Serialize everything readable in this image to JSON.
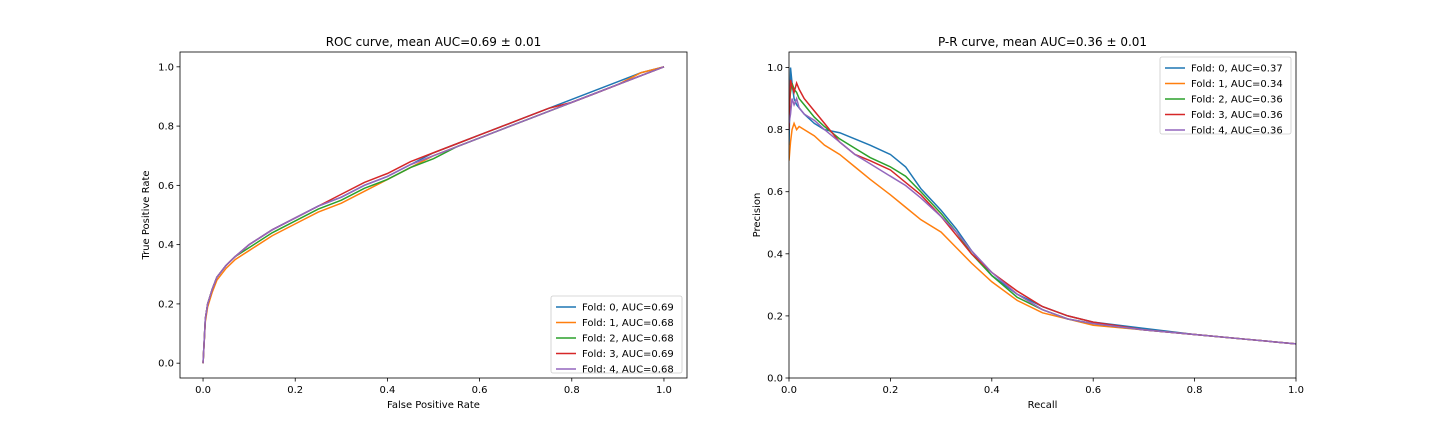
{
  "colors": [
    "#1f77b4",
    "#ff7f0e",
    "#2ca02c",
    "#d62728",
    "#9467bd"
  ],
  "chart_data": [
    {
      "type": "line",
      "title": "ROC curve, mean AUC=0.69 ± 0.01",
      "xlabel": "False Positive Rate",
      "ylabel": "True Positive Rate",
      "xlim": [
        -0.05,
        1.05
      ],
      "ylim": [
        -0.05,
        1.05
      ],
      "xticks": [
        "0.0",
        "0.2",
        "0.4",
        "0.6",
        "0.8",
        "1.0"
      ],
      "yticks": [
        "0.0",
        "0.2",
        "0.4",
        "0.6",
        "0.8",
        "1.0"
      ],
      "legend": "lower-right",
      "grid": false,
      "series": [
        {
          "name": "Fold: 0, AUC=0.69",
          "x": [
            0,
            0.005,
            0.01,
            0.02,
            0.03,
            0.05,
            0.07,
            0.1,
            0.15,
            0.2,
            0.25,
            0.3,
            0.35,
            0.4,
            0.45,
            0.5,
            0.55,
            0.6,
            0.65,
            0.7,
            0.75,
            0.8,
            0.85,
            0.9,
            0.95,
            1.0
          ],
          "y": [
            0,
            0.15,
            0.2,
            0.25,
            0.29,
            0.33,
            0.36,
            0.4,
            0.45,
            0.49,
            0.53,
            0.56,
            0.6,
            0.63,
            0.67,
            0.71,
            0.74,
            0.77,
            0.8,
            0.83,
            0.86,
            0.89,
            0.92,
            0.95,
            0.98,
            1.0
          ]
        },
        {
          "name": "Fold: 1, AUC=0.68",
          "x": [
            0,
            0.005,
            0.01,
            0.02,
            0.03,
            0.05,
            0.07,
            0.1,
            0.15,
            0.2,
            0.25,
            0.3,
            0.35,
            0.4,
            0.45,
            0.5,
            0.55,
            0.6,
            0.65,
            0.7,
            0.75,
            0.8,
            0.85,
            0.9,
            0.95,
            1.0
          ],
          "y": [
            0,
            0.14,
            0.19,
            0.24,
            0.28,
            0.32,
            0.35,
            0.38,
            0.43,
            0.47,
            0.51,
            0.54,
            0.58,
            0.62,
            0.66,
            0.7,
            0.73,
            0.76,
            0.79,
            0.82,
            0.85,
            0.88,
            0.91,
            0.94,
            0.98,
            1.0
          ]
        },
        {
          "name": "Fold: 2, AUC=0.68",
          "x": [
            0,
            0.005,
            0.01,
            0.02,
            0.03,
            0.05,
            0.07,
            0.1,
            0.15,
            0.2,
            0.25,
            0.3,
            0.35,
            0.4,
            0.45,
            0.5,
            0.55,
            0.6,
            0.65,
            0.7,
            0.75,
            0.8,
            0.85,
            0.9,
            0.95,
            1.0
          ],
          "y": [
            0,
            0.15,
            0.2,
            0.25,
            0.29,
            0.33,
            0.36,
            0.39,
            0.44,
            0.48,
            0.52,
            0.55,
            0.59,
            0.62,
            0.66,
            0.69,
            0.73,
            0.76,
            0.79,
            0.82,
            0.85,
            0.88,
            0.91,
            0.94,
            0.97,
            1.0
          ]
        },
        {
          "name": "Fold: 3, AUC=0.69",
          "x": [
            0,
            0.005,
            0.01,
            0.02,
            0.03,
            0.05,
            0.07,
            0.1,
            0.15,
            0.2,
            0.25,
            0.3,
            0.35,
            0.4,
            0.45,
            0.5,
            0.55,
            0.6,
            0.65,
            0.7,
            0.75,
            0.8,
            0.85,
            0.9,
            0.95,
            1.0
          ],
          "y": [
            0,
            0.15,
            0.2,
            0.25,
            0.29,
            0.33,
            0.36,
            0.4,
            0.45,
            0.49,
            0.53,
            0.57,
            0.61,
            0.64,
            0.68,
            0.71,
            0.74,
            0.77,
            0.8,
            0.83,
            0.86,
            0.88,
            0.91,
            0.94,
            0.97,
            1.0
          ]
        },
        {
          "name": "Fold: 4, AUC=0.68",
          "x": [
            0,
            0.005,
            0.01,
            0.02,
            0.03,
            0.05,
            0.07,
            0.1,
            0.15,
            0.2,
            0.25,
            0.3,
            0.35,
            0.4,
            0.45,
            0.5,
            0.55,
            0.6,
            0.65,
            0.7,
            0.75,
            0.8,
            0.85,
            0.9,
            0.95,
            1.0
          ],
          "y": [
            0,
            0.15,
            0.2,
            0.25,
            0.29,
            0.33,
            0.36,
            0.4,
            0.45,
            0.49,
            0.53,
            0.56,
            0.6,
            0.63,
            0.67,
            0.7,
            0.73,
            0.76,
            0.79,
            0.82,
            0.85,
            0.88,
            0.91,
            0.94,
            0.97,
            1.0
          ]
        }
      ]
    },
    {
      "type": "line",
      "title": "P-R curve, mean AUC=0.36 ± 0.01",
      "xlabel": "Recall",
      "ylabel": "Precision",
      "xlim": [
        0,
        1.0
      ],
      "ylim": [
        0,
        1.05
      ],
      "xticks": [
        "0.0",
        "0.2",
        "0.4",
        "0.6",
        "0.8",
        "1.0"
      ],
      "yticks": [
        "0.0",
        "0.2",
        "0.4",
        "0.6",
        "0.8",
        "1.0"
      ],
      "legend": "upper-right",
      "grid": false,
      "series": [
        {
          "name": "Fold: 0, AUC=0.37",
          "x": [
            0,
            0.003,
            0.006,
            0.01,
            0.015,
            0.02,
            0.03,
            0.05,
            0.07,
            0.1,
            0.13,
            0.16,
            0.2,
            0.23,
            0.26,
            0.3,
            0.33,
            0.36,
            0.4,
            0.45,
            0.5,
            0.55,
            0.6,
            0.7,
            0.8,
            0.9,
            1.0
          ],
          "y": [
            0.75,
            1.0,
            0.95,
            0.9,
            0.88,
            0.87,
            0.85,
            0.82,
            0.8,
            0.79,
            0.77,
            0.75,
            0.72,
            0.68,
            0.61,
            0.54,
            0.48,
            0.41,
            0.33,
            0.27,
            0.23,
            0.2,
            0.18,
            0.16,
            0.14,
            0.125,
            0.11
          ]
        },
        {
          "name": "Fold: 1, AUC=0.34",
          "x": [
            0,
            0.003,
            0.006,
            0.01,
            0.015,
            0.02,
            0.03,
            0.05,
            0.07,
            0.1,
            0.13,
            0.16,
            0.2,
            0.23,
            0.26,
            0.3,
            0.33,
            0.36,
            0.4,
            0.45,
            0.5,
            0.55,
            0.6,
            0.7,
            0.8,
            0.9,
            1.0
          ],
          "y": [
            0.7,
            0.76,
            0.8,
            0.82,
            0.8,
            0.81,
            0.8,
            0.78,
            0.75,
            0.72,
            0.68,
            0.64,
            0.59,
            0.55,
            0.51,
            0.47,
            0.42,
            0.37,
            0.31,
            0.25,
            0.21,
            0.19,
            0.17,
            0.155,
            0.14,
            0.125,
            0.11
          ]
        },
        {
          "name": "Fold: 2, AUC=0.36",
          "x": [
            0,
            0.003,
            0.006,
            0.01,
            0.015,
            0.02,
            0.03,
            0.05,
            0.07,
            0.1,
            0.13,
            0.16,
            0.2,
            0.23,
            0.26,
            0.3,
            0.33,
            0.36,
            0.4,
            0.45,
            0.5,
            0.55,
            0.6,
            0.7,
            0.8,
            0.9,
            1.0
          ],
          "y": [
            0.88,
            0.92,
            0.95,
            0.93,
            0.92,
            0.9,
            0.88,
            0.84,
            0.81,
            0.77,
            0.74,
            0.71,
            0.68,
            0.65,
            0.6,
            0.53,
            0.47,
            0.4,
            0.33,
            0.26,
            0.22,
            0.19,
            0.175,
            0.155,
            0.14,
            0.125,
            0.11
          ]
        },
        {
          "name": "Fold: 3, AUC=0.36",
          "x": [
            0,
            0.003,
            0.006,
            0.01,
            0.015,
            0.02,
            0.03,
            0.05,
            0.07,
            0.1,
            0.13,
            0.16,
            0.2,
            0.23,
            0.26,
            0.3,
            0.33,
            0.36,
            0.4,
            0.45,
            0.5,
            0.55,
            0.6,
            0.7,
            0.8,
            0.9,
            1.0
          ],
          "y": [
            0.8,
            0.96,
            0.94,
            0.92,
            0.95,
            0.93,
            0.9,
            0.86,
            0.82,
            0.76,
            0.72,
            0.7,
            0.67,
            0.63,
            0.59,
            0.52,
            0.46,
            0.4,
            0.34,
            0.28,
            0.23,
            0.2,
            0.18,
            0.155,
            0.14,
            0.125,
            0.11
          ]
        },
        {
          "name": "Fold: 4, AUC=0.36",
          "x": [
            0,
            0.003,
            0.006,
            0.01,
            0.015,
            0.02,
            0.03,
            0.05,
            0.07,
            0.1,
            0.13,
            0.16,
            0.2,
            0.23,
            0.26,
            0.3,
            0.33,
            0.36,
            0.4,
            0.45,
            0.5,
            0.55,
            0.6,
            0.7,
            0.8,
            0.9,
            1.0
          ],
          "y": [
            0.82,
            0.85,
            0.9,
            0.88,
            0.9,
            0.87,
            0.85,
            0.83,
            0.8,
            0.76,
            0.72,
            0.69,
            0.65,
            0.62,
            0.58,
            0.52,
            0.47,
            0.41,
            0.34,
            0.27,
            0.22,
            0.19,
            0.175,
            0.155,
            0.14,
            0.125,
            0.11
          ]
        }
      ]
    }
  ]
}
